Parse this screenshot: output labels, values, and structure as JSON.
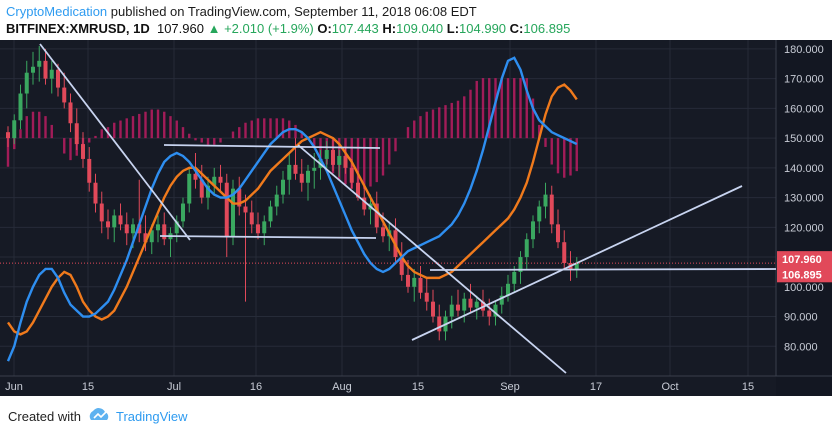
{
  "header": {
    "author": "CryptoMedication",
    "published": "published on TradingView.com, September 11, 2018 06:08 EDT",
    "symbol": "BITFINEX:XMRUSD, 1D",
    "last": "107.960",
    "change": "+2.010 (+1.9%)",
    "o_label": "O:",
    "o": "107.443",
    "h_label": "H:",
    "h": "109.040",
    "l_label": "L:",
    "l": "104.990",
    "c_label": "C:",
    "c": "106.895"
  },
  "footer": {
    "created_with": "Created with",
    "brand": "TradingView"
  },
  "colors": {
    "background": "#161a25",
    "up": "#3aa860",
    "down": "#e1495a",
    "ma_fast": "#2e8ef0",
    "ma_slow": "#f07a1c",
    "trendline": "#c8d4f0",
    "osc": "#d21e6a",
    "grid": "#262b38",
    "axis_text": "#c8ccd6",
    "tag_last": "#e1495a",
    "tag_close": "#e1495a"
  },
  "chart_data": {
    "type": "candlestick",
    "title": "",
    "xlabel": "",
    "ylabel": "",
    "ylim": [
      70,
      183
    ],
    "y_ticks": [
      "80.000",
      "90.000",
      "100.000",
      "110.000",
      "120.000",
      "130.000",
      "140.000",
      "150.000",
      "160.000",
      "170.000",
      "180.000"
    ],
    "x_ticks": [
      "Jun",
      "15",
      "Jul",
      "16",
      "Aug",
      "15",
      "Sep",
      "17",
      "Oct",
      "15"
    ],
    "price_tags": [
      "107.960",
      "106.895"
    ],
    "candles": [
      [
        152,
        154,
        147,
        150
      ],
      [
        150,
        158,
        148,
        156
      ],
      [
        156,
        168,
        153,
        165
      ],
      [
        165,
        176,
        160,
        172
      ],
      [
        172,
        179,
        168,
        174
      ],
      [
        174,
        181,
        169,
        176
      ],
      [
        176,
        180,
        168,
        170
      ],
      [
        170,
        176,
        165,
        173
      ],
      [
        173,
        175,
        164,
        167
      ],
      [
        167,
        172,
        160,
        162
      ],
      [
        162,
        165,
        152,
        155
      ],
      [
        155,
        160,
        146,
        148
      ],
      [
        148,
        152,
        140,
        143
      ],
      [
        143,
        147,
        132,
        135
      ],
      [
        135,
        138,
        125,
        128
      ],
      [
        128,
        132,
        118,
        122
      ],
      [
        122,
        126,
        116,
        120
      ],
      [
        120,
        126,
        115,
        124
      ],
      [
        124,
        128,
        119,
        121
      ],
      [
        121,
        125,
        114,
        118
      ],
      [
        118,
        123,
        113,
        121
      ],
      [
        121,
        136,
        115,
        118
      ],
      [
        118,
        124,
        112,
        115
      ],
      [
        115,
        121,
        111,
        119
      ],
      [
        119,
        124,
        115,
        121
      ],
      [
        121,
        125,
        114,
        116
      ],
      [
        116,
        120,
        110,
        118
      ],
      [
        118,
        124,
        115,
        122
      ],
      [
        122,
        130,
        120,
        128
      ],
      [
        128,
        140,
        125,
        138
      ],
      [
        138,
        145,
        133,
        136
      ],
      [
        136,
        141,
        128,
        130
      ],
      [
        130,
        137,
        126,
        134
      ],
      [
        134,
        140,
        131,
        137
      ],
      [
        137,
        141,
        132,
        135
      ],
      [
        135,
        138,
        110,
        117
      ],
      [
        117,
        136,
        114,
        133
      ],
      [
        133,
        137,
        124,
        127
      ],
      [
        127,
        131,
        95,
        125
      ],
      [
        125,
        129,
        118,
        121
      ],
      [
        121,
        125,
        116,
        118
      ],
      [
        118,
        124,
        114,
        122
      ],
      [
        122,
        129,
        120,
        127
      ],
      [
        127,
        134,
        124,
        131
      ],
      [
        131,
        139,
        128,
        136
      ],
      [
        136,
        145,
        131,
        141
      ],
      [
        141,
        150,
        136,
        138
      ],
      [
        138,
        143,
        132,
        135
      ],
      [
        135,
        141,
        129,
        139
      ],
      [
        139,
        145,
        133,
        140
      ],
      [
        140,
        146,
        136,
        143
      ],
      [
        143,
        149,
        139,
        146
      ],
      [
        146,
        150,
        139,
        141
      ],
      [
        141,
        146,
        137,
        144
      ],
      [
        144,
        147,
        138,
        140
      ],
      [
        140,
        143,
        133,
        135
      ],
      [
        135,
        139,
        129,
        130
      ],
      [
        130,
        134,
        124,
        126
      ],
      [
        126,
        131,
        121,
        128
      ],
      [
        128,
        132,
        118,
        120
      ],
      [
        120,
        125,
        115,
        117
      ],
      [
        117,
        122,
        112,
        119
      ],
      [
        119,
        123,
        108,
        110
      ],
      [
        110,
        115,
        102,
        104
      ],
      [
        104,
        109,
        98,
        100
      ],
      [
        100,
        106,
        95,
        103
      ],
      [
        103,
        107,
        96,
        98
      ],
      [
        98,
        103,
        92,
        95
      ],
      [
        95,
        99,
        88,
        90
      ],
      [
        90,
        94,
        82,
        85
      ],
      [
        85,
        92,
        82,
        90
      ],
      [
        90,
        97,
        86,
        94
      ],
      [
        94,
        99,
        90,
        92
      ],
      [
        92,
        98,
        88,
        96
      ],
      [
        96,
        101,
        91,
        93
      ],
      [
        93,
        97,
        89,
        95
      ],
      [
        95,
        99,
        90,
        92
      ],
      [
        92,
        96,
        87,
        90
      ],
      [
        90,
        95,
        87,
        94
      ],
      [
        94,
        100,
        91,
        97
      ],
      [
        97,
        104,
        95,
        101
      ],
      [
        101,
        107,
        98,
        105
      ],
      [
        105,
        112,
        101,
        110
      ],
      [
        110,
        118,
        106,
        116
      ],
      [
        116,
        124,
        113,
        122
      ],
      [
        122,
        129,
        118,
        127
      ],
      [
        127,
        135,
        123,
        131
      ],
      [
        131,
        134,
        118,
        121
      ],
      [
        121,
        126,
        113,
        115
      ],
      [
        115,
        119,
        106,
        108
      ],
      [
        108,
        112,
        102,
        106
      ],
      [
        106,
        110,
        103,
        108
      ]
    ],
    "series": [
      {
        "values": [
          88,
          85,
          84,
          85,
          88,
          92,
          96,
          100,
          103,
          105,
          104,
          100,
          95,
          92,
          90,
          89,
          90,
          92,
          96,
          100,
          105,
          110,
          115,
          120,
          125,
          130,
          134,
          137,
          139,
          140,
          140,
          138,
          136,
          134,
          132,
          130,
          128,
          128,
          129,
          131,
          133,
          136,
          139,
          141,
          143,
          145,
          147,
          149,
          150,
          151,
          152,
          151,
          150,
          148,
          145,
          142,
          138,
          134,
          130,
          126,
          122,
          118,
          114,
          110,
          107,
          105,
          104,
          103,
          103,
          103,
          104,
          105,
          107,
          109,
          111,
          113,
          115,
          117,
          119,
          121,
          123,
          126,
          130,
          135,
          142,
          150,
          158,
          164,
          167,
          168,
          166,
          163
        ]
      },
      {
        "values": [
          75,
          80,
          88,
          95,
          100,
          104,
          106,
          106,
          103,
          98,
          94,
          92,
          90,
          90,
          91,
          93,
          95,
          99,
          104,
          109,
          115,
          121,
          127,
          133,
          138,
          142,
          144,
          145,
          144,
          142,
          139,
          136,
          133,
          131,
          130,
          130,
          131,
          133,
          136,
          139,
          142,
          145,
          148,
          150,
          152,
          153,
          153,
          152,
          150,
          147,
          143,
          139,
          134,
          129,
          124,
          119,
          115,
          111,
          108,
          106,
          105,
          106,
          108,
          110,
          112,
          113,
          114,
          115,
          116,
          117,
          119,
          121,
          124,
          128,
          133,
          139,
          146,
          154,
          162,
          170,
          176,
          177,
          173,
          166,
          160,
          156,
          154,
          152,
          151,
          150,
          149,
          148
        ]
      }
    ]
  }
}
